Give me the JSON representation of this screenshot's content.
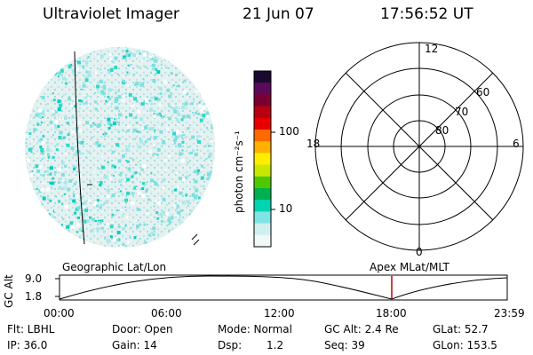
{
  "header": {
    "instrument": "Ultraviolet Imager",
    "date": "21 Jun 07",
    "time": "17:56:52 UT"
  },
  "colorbar": {
    "label": "photon cm⁻²s⁻¹",
    "ticks": [
      "100",
      "10"
    ],
    "colors": [
      "#1a0a30",
      "#5b0a5a",
      "#7a0030",
      "#b80010",
      "#e80000",
      "#ff6a00",
      "#ffb000",
      "#ffee00",
      "#c8e800",
      "#50c800",
      "#00b050",
      "#00d4b0",
      "#80e4e4",
      "#d0f0f0",
      "#f0f8f8"
    ]
  },
  "polar": {
    "labels_top": "12",
    "labels_bottom": "0",
    "labels_left": "18",
    "labels_right": "6",
    "lat_labels": [
      "60",
      "70",
      "80"
    ]
  },
  "timeline": {
    "left_title": "Geographic Lat/Lon",
    "right_title": "Apex  MLat/MLT",
    "axis_label": "GC Alt",
    "y_top": "9.0",
    "y_bottom": "1.8",
    "x_ticks": [
      "00:00",
      "06:00",
      "12:00",
      "18:00",
      "23:59"
    ],
    "marker_color": "#c00000"
  },
  "status": {
    "flt": "Flt: LBHL",
    "ip": "IP: 36.0",
    "door": "Door: Open",
    "gain": "Gain: 14",
    "mode": "Mode: Normal",
    "dsp_label": "Dsp:",
    "dsp_value": "1.2",
    "gc_alt": "GC Alt: 2.4 Re",
    "seq": "Seq: 39",
    "glat": "GLat:  52.7",
    "glon": "GLon: 153.5"
  }
}
